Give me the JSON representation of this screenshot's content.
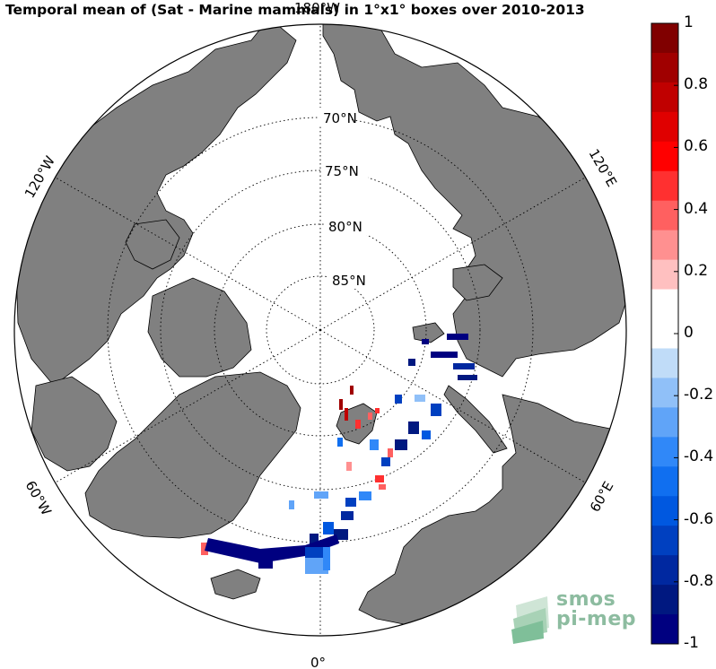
{
  "title": "Temporal mean of (Sat - Marine mammals) in 1°x1° boxes over 2010-2013",
  "map": {
    "projection": "north-polar-stereographic",
    "land_color": "#808080",
    "ocean_color": "#ffffff",
    "lat_labels": [
      "70°N",
      "75°N",
      "80°N",
      "85°N"
    ],
    "lon_labels": {
      "top": "180°W",
      "bottom": "0°",
      "left_upper": "120°W",
      "left_lower": "60°W",
      "right_upper": "120°E",
      "right_lower": "60°E"
    }
  },
  "colorbar": {
    "min": -1,
    "max": 1,
    "tick_labels": [
      "1",
      "0.8",
      "0.6",
      "0.4",
      "0.2",
      "0",
      "-0.2",
      "-0.4",
      "-0.6",
      "-0.8",
      "-1"
    ],
    "colors_top_to_bottom": [
      "#800000",
      "#a00000",
      "#c00000",
      "#e00000",
      "#ff0000",
      "#ff3030",
      "#ff6060",
      "#ff9090",
      "#ffc0c0",
      "#ffffff",
      "#ffffff",
      "#c0dcf8",
      "#90c0f8",
      "#60a4f8",
      "#3088f8",
      "#106ff0",
      "#0058e0",
      "#0040c0",
      "#0028a0",
      "#001880",
      "#000080"
    ]
  },
  "logo": {
    "line1": "smos",
    "line2": "pi-mep"
  }
}
